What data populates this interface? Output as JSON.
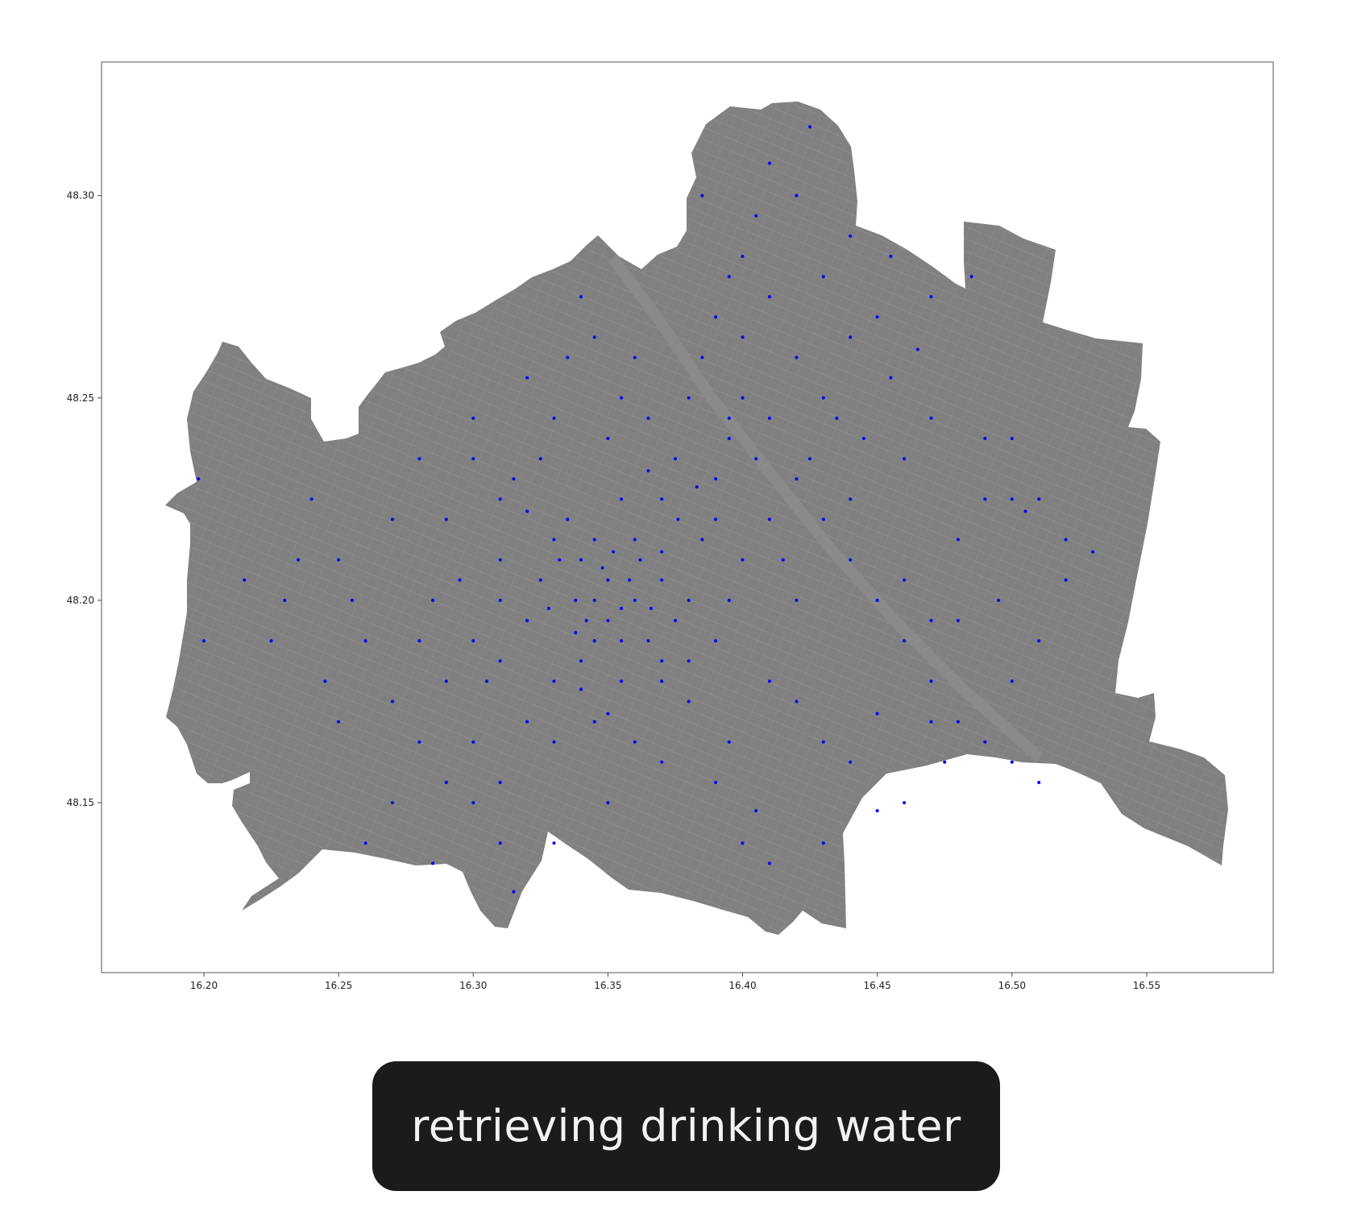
{
  "chart_data": {
    "type": "scatter",
    "title": "",
    "xlabel": "",
    "ylabel": "",
    "xlim": [
      16.162,
      16.597
    ],
    "ylim": [
      48.108,
      48.333
    ],
    "x_ticks": [
      "16.20",
      "16.25",
      "16.30",
      "16.35",
      "16.40",
      "16.45",
      "16.50",
      "16.55"
    ],
    "y_ticks": [
      "48.15",
      "48.20",
      "48.25",
      "48.30"
    ],
    "grid": false,
    "base_layer": "city area (grey) with street network",
    "point_color": "#0000ff",
    "area_color": "#808080",
    "series": [
      {
        "points": [
          [
            16.345,
            48.2
          ],
          [
            16.35,
            48.205
          ],
          [
            16.34,
            48.21
          ],
          [
            16.355,
            48.198
          ],
          [
            16.36,
            48.2
          ],
          [
            16.33,
            48.215
          ],
          [
            16.345,
            48.19
          ],
          [
            16.352,
            48.212
          ],
          [
            16.338,
            48.2
          ],
          [
            16.36,
            48.215
          ],
          [
            16.37,
            48.205
          ],
          [
            16.325,
            48.205
          ],
          [
            16.34,
            48.185
          ],
          [
            16.365,
            48.19
          ],
          [
            16.32,
            48.195
          ],
          [
            16.335,
            48.22
          ],
          [
            16.355,
            48.225
          ],
          [
            16.375,
            48.195
          ],
          [
            16.31,
            48.21
          ],
          [
            16.33,
            48.18
          ],
          [
            16.37,
            48.185
          ],
          [
            16.305,
            48.18
          ],
          [
            16.38,
            48.2
          ],
          [
            16.385,
            48.215
          ],
          [
            16.39,
            48.23
          ],
          [
            16.395,
            48.24
          ],
          [
            16.4,
            48.25
          ],
          [
            16.41,
            48.245
          ],
          [
            16.405,
            48.235
          ],
          [
            16.42,
            48.23
          ],
          [
            16.43,
            48.22
          ],
          [
            16.44,
            48.21
          ],
          [
            16.45,
            48.2
          ],
          [
            16.46,
            48.19
          ],
          [
            16.47,
            48.18
          ],
          [
            16.48,
            48.17
          ],
          [
            16.49,
            48.165
          ],
          [
            16.5,
            48.16
          ],
          [
            16.51,
            48.155
          ],
          [
            16.39,
            48.27
          ],
          [
            16.4,
            48.285
          ],
          [
            16.42,
            48.3
          ],
          [
            16.425,
            48.317
          ],
          [
            16.385,
            48.3
          ],
          [
            16.36,
            48.26
          ],
          [
            16.34,
            48.275
          ],
          [
            16.32,
            48.255
          ],
          [
            16.3,
            48.245
          ],
          [
            16.28,
            48.235
          ],
          [
            16.27,
            48.22
          ],
          [
            16.25,
            48.21
          ],
          [
            16.24,
            48.225
          ],
          [
            16.23,
            48.2
          ],
          [
            16.215,
            48.205
          ],
          [
            16.2,
            48.19
          ],
          [
            16.198,
            48.23
          ],
          [
            16.26,
            48.19
          ],
          [
            16.27,
            48.175
          ],
          [
            16.28,
            48.165
          ],
          [
            16.29,
            48.155
          ],
          [
            16.3,
            48.15
          ],
          [
            16.31,
            48.14
          ],
          [
            16.315,
            48.128
          ],
          [
            16.285,
            48.135
          ],
          [
            16.26,
            48.14
          ],
          [
            16.33,
            48.165
          ],
          [
            16.345,
            48.17
          ],
          [
            16.36,
            48.165
          ],
          [
            16.38,
            48.175
          ],
          [
            16.395,
            48.165
          ],
          [
            16.41,
            48.18
          ],
          [
            16.42,
            48.175
          ],
          [
            16.43,
            48.165
          ],
          [
            16.405,
            48.148
          ],
          [
            16.4,
            48.14
          ],
          [
            16.41,
            48.135
          ],
          [
            16.44,
            48.16
          ],
          [
            16.45,
            48.172
          ],
          [
            16.46,
            48.15
          ],
          [
            16.475,
            48.16
          ],
          [
            16.47,
            48.195
          ],
          [
            16.48,
            48.215
          ],
          [
            16.49,
            48.225
          ],
          [
            16.5,
            48.225
          ],
          [
            16.505,
            48.222
          ],
          [
            16.51,
            48.225
          ],
          [
            16.52,
            48.215
          ],
          [
            16.53,
            48.212
          ],
          [
            16.46,
            48.235
          ],
          [
            16.47,
            48.245
          ],
          [
            16.49,
            48.24
          ],
          [
            16.5,
            48.24
          ],
          [
            16.45,
            48.27
          ],
          [
            16.455,
            48.285
          ],
          [
            16.44,
            48.29
          ],
          [
            16.43,
            48.28
          ],
          [
            16.485,
            48.28
          ],
          [
            16.42,
            48.26
          ],
          [
            16.43,
            48.25
          ],
          [
            16.445,
            48.24
          ],
          [
            16.35,
            48.24
          ],
          [
            16.355,
            48.25
          ],
          [
            16.365,
            48.245
          ],
          [
            16.375,
            48.235
          ],
          [
            16.37,
            48.225
          ],
          [
            16.325,
            48.235
          ],
          [
            16.31,
            48.225
          ],
          [
            16.3,
            48.235
          ],
          [
            16.29,
            48.22
          ],
          [
            16.285,
            48.2
          ],
          [
            16.3,
            48.19
          ],
          [
            16.31,
            48.2
          ],
          [
            16.295,
            48.205
          ],
          [
            16.31,
            48.185
          ],
          [
            16.32,
            48.17
          ],
          [
            16.355,
            48.18
          ],
          [
            16.35,
            48.172
          ],
          [
            16.39,
            48.19
          ],
          [
            16.395,
            48.2
          ],
          [
            16.4,
            48.21
          ],
          [
            16.41,
            48.22
          ],
          [
            16.415,
            48.21
          ],
          [
            16.42,
            48.2
          ],
          [
            16.38,
            48.25
          ],
          [
            16.385,
            48.26
          ],
          [
            16.4,
            48.265
          ],
          [
            16.41,
            48.275
          ],
          [
            16.395,
            48.28
          ],
          [
            16.405,
            48.295
          ],
          [
            16.41,
            48.308
          ],
          [
            16.335,
            48.26
          ],
          [
            16.345,
            48.265
          ],
          [
            16.33,
            48.245
          ],
          [
            16.315,
            48.23
          ],
          [
            16.32,
            48.222
          ],
          [
            16.345,
            48.215
          ],
          [
            16.35,
            48.195
          ],
          [
            16.342,
            48.195
          ],
          [
            16.358,
            48.205
          ],
          [
            16.362,
            48.21
          ],
          [
            16.348,
            48.208
          ],
          [
            16.332,
            48.21
          ],
          [
            16.328,
            48.198
          ],
          [
            16.338,
            48.192
          ],
          [
            16.366,
            48.198
          ],
          [
            16.37,
            48.212
          ],
          [
            16.376,
            48.22
          ],
          [
            16.383,
            48.228
          ],
          [
            16.395,
            48.245
          ],
          [
            16.39,
            48.22
          ],
          [
            16.365,
            48.232
          ],
          [
            16.355,
            48.19
          ],
          [
            16.34,
            48.178
          ],
          [
            16.37,
            48.18
          ],
          [
            16.38,
            48.185
          ],
          [
            16.3,
            48.165
          ],
          [
            16.31,
            48.155
          ],
          [
            16.27,
            48.15
          ],
          [
            16.25,
            48.17
          ],
          [
            16.245,
            48.18
          ],
          [
            16.255,
            48.2
          ],
          [
            16.235,
            48.21
          ],
          [
            16.225,
            48.19
          ],
          [
            16.28,
            48.19
          ],
          [
            16.29,
            48.18
          ],
          [
            16.33,
            48.14
          ],
          [
            16.35,
            48.15
          ],
          [
            16.37,
            48.16
          ],
          [
            16.39,
            48.155
          ],
          [
            16.43,
            48.14
          ],
          [
            16.45,
            48.148
          ],
          [
            16.47,
            48.17
          ],
          [
            16.5,
            48.18
          ],
          [
            16.495,
            48.2
          ],
          [
            16.51,
            48.19
          ],
          [
            16.52,
            48.205
          ],
          [
            16.48,
            48.195
          ],
          [
            16.46,
            48.205
          ],
          [
            16.44,
            48.225
          ],
          [
            16.425,
            48.235
          ],
          [
            16.435,
            48.245
          ],
          [
            16.455,
            48.255
          ],
          [
            16.465,
            48.262
          ],
          [
            16.47,
            48.275
          ],
          [
            16.44,
            48.265
          ]
        ]
      }
    ]
  },
  "caption": "retrieving drinking water"
}
